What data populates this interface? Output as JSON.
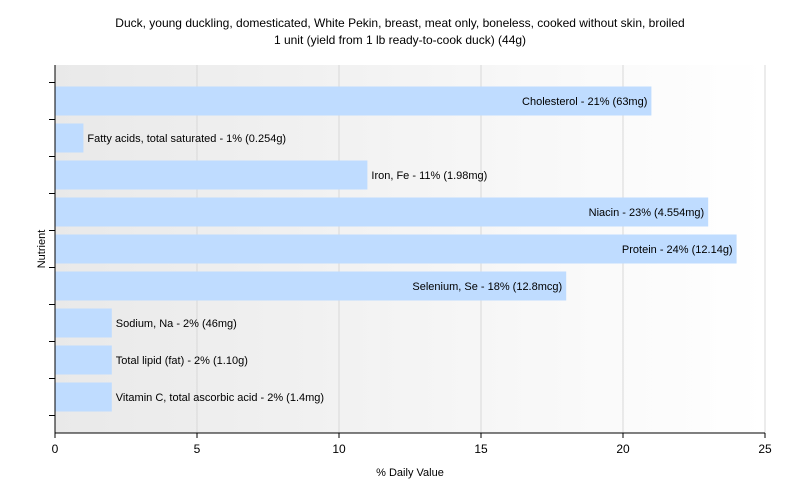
{
  "chart_data": {
    "type": "bar",
    "orientation": "horizontal",
    "title": [
      "Duck, young duckling, domesticated, White Pekin, breast, meat only, boneless, cooked without skin, broiled",
      "1 unit (yield from 1 lb ready-to-cook duck) (44g)"
    ],
    "xlabel": "% Daily Value",
    "ylabel": "Nutrient",
    "xlim": [
      0,
      25
    ],
    "xticks": [
      0,
      5,
      10,
      15,
      20,
      25
    ],
    "grid": true,
    "bar_color": "#bfdcff",
    "categories": [
      "Cholesterol",
      "Fatty acids, total saturated",
      "Iron, Fe",
      "Niacin",
      "Protein",
      "Selenium, Se",
      "Sodium, Na",
      "Total lipid (fat)",
      "Vitamin C, total ascorbic acid"
    ],
    "values": [
      21,
      1,
      11,
      23,
      24,
      18,
      2,
      2,
      2
    ],
    "labels": [
      "Cholesterol - 21% (63mg)",
      "Fatty acids, total saturated - 1% (0.254g)",
      "Iron, Fe - 11% (1.98mg)",
      "Niacin - 23% (4.554mg)",
      "Protein - 24% (12.14g)",
      "Selenium, Se - 18% (12.8mcg)",
      "Sodium, Na - 2% (46mg)",
      "Total lipid (fat) - 2% (1.10g)",
      "Vitamin C, total ascorbic acid - 2% (1.4mg)"
    ]
  }
}
